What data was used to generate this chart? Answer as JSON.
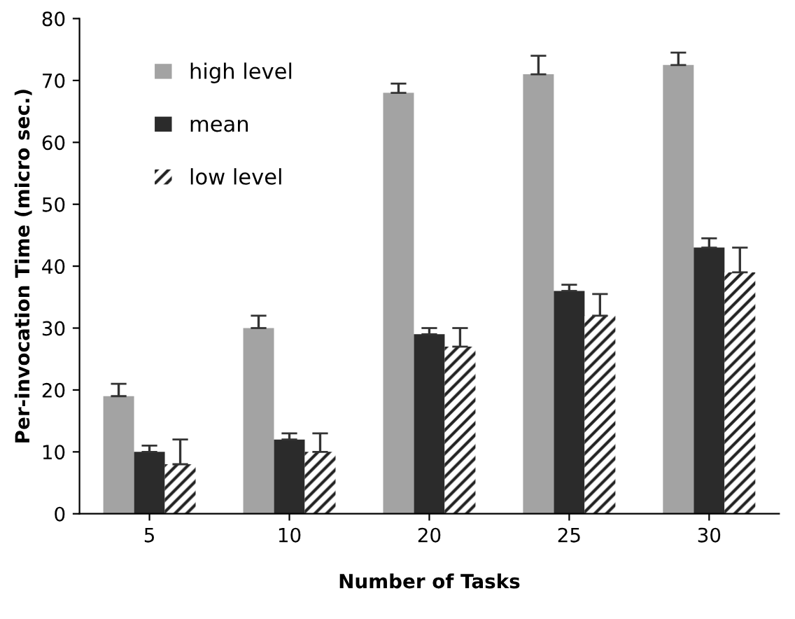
{
  "chart_data": {
    "type": "bar",
    "xlabel": "Number of Tasks",
    "ylabel": "Per-invocation Time (micro sec.)",
    "categories": [
      "5",
      "10",
      "20",
      "25",
      "30"
    ],
    "series": [
      {
        "name": "high level",
        "color": "#a3a3a3",
        "values": [
          19,
          30,
          68,
          71,
          72.5
        ],
        "errors": [
          [
            19,
            21
          ],
          [
            30,
            32
          ],
          [
            68,
            69.5
          ],
          [
            71,
            74
          ],
          [
            72.5,
            74.5
          ]
        ]
      },
      {
        "name": "mean",
        "color": "#2b2b2b",
        "values": [
          10,
          12,
          29,
          36,
          43
        ],
        "errors": [
          [
            10,
            11
          ],
          [
            12,
            13
          ],
          [
            29,
            30
          ],
          [
            36,
            37
          ],
          [
            43,
            44.5
          ]
        ]
      },
      {
        "name": "low level",
        "color": "#ffffff",
        "values": [
          8,
          10,
          27,
          32,
          39
        ],
        "errors": [
          [
            8,
            12
          ],
          [
            10,
            13
          ],
          [
            27,
            30
          ],
          [
            32,
            35.5
          ],
          [
            39,
            43
          ]
        ]
      }
    ],
    "ylim": [
      0,
      80
    ],
    "yticks": [
      0,
      10,
      20,
      30,
      40,
      50,
      60,
      70,
      80
    ],
    "grid": false,
    "legend": "top left"
  }
}
